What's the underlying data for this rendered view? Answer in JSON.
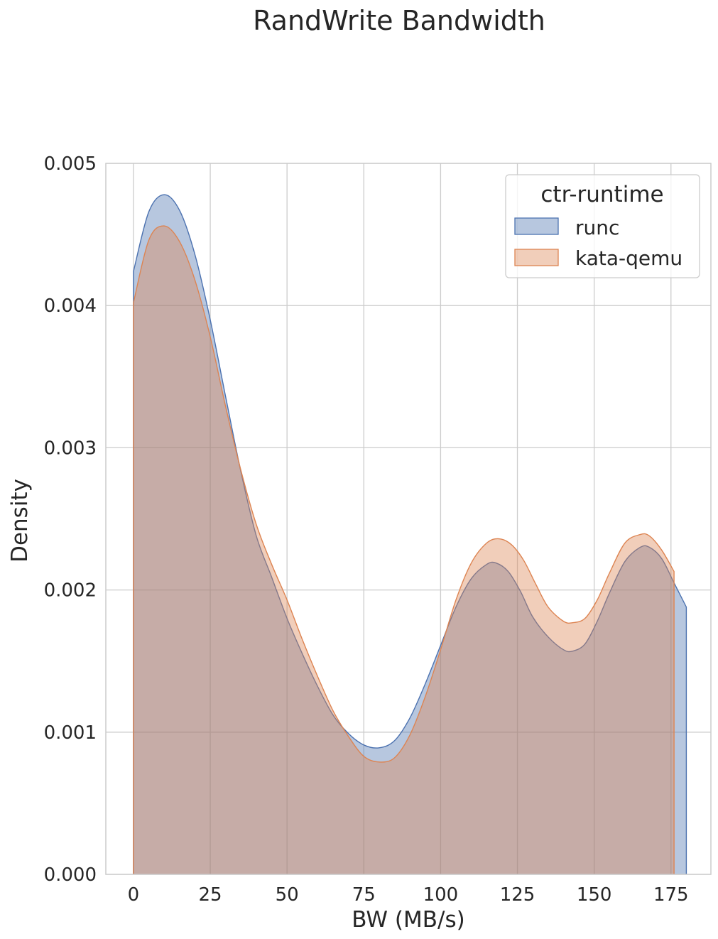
{
  "chart_data": {
    "type": "area",
    "title": "RandWrite Bandwidth",
    "xlabel": "BW (MB/s)",
    "ylabel": "Density",
    "xlim": [
      -9,
      188
    ],
    "ylim": [
      0,
      0.005
    ],
    "x_ticks": [
      0,
      25,
      50,
      75,
      100,
      125,
      150,
      175
    ],
    "x_tick_labels": [
      "0",
      "25",
      "50",
      "75",
      "100",
      "125",
      "150",
      "175"
    ],
    "y_ticks": [
      0,
      0.001,
      0.002,
      0.003,
      0.004,
      0.005
    ],
    "y_tick_labels": [
      "0.000",
      "0.001",
      "0.002",
      "0.003",
      "0.004",
      "0.005"
    ],
    "grid": true,
    "legend": {
      "title": "ctr-runtime",
      "placement": "top-right"
    },
    "series": [
      {
        "name": "runc",
        "color": "#4c72b0",
        "x": [
          0,
          5,
          10,
          15,
          20,
          25,
          30,
          35,
          40,
          45,
          50,
          55,
          60,
          65,
          70,
          75,
          80,
          85,
          90,
          95,
          100,
          105,
          110,
          115,
          118,
          122,
          126,
          130,
          135,
          140,
          143,
          147,
          151,
          155,
          160,
          165,
          168,
          172,
          176,
          180
        ],
        "y": [
          0.00424,
          0.00466,
          0.00478,
          0.00467,
          0.00436,
          0.0039,
          0.00336,
          0.00283,
          0.00238,
          0.00209,
          0.0018,
          0.00155,
          0.00132,
          0.00112,
          0.00099,
          0.00091,
          0.00089,
          0.00094,
          0.0011,
          0.00134,
          0.00161,
          0.00188,
          0.00208,
          0.00218,
          0.00219,
          0.00213,
          0.00199,
          0.00181,
          0.00167,
          0.00158,
          0.00157,
          0.00162,
          0.00178,
          0.00198,
          0.0022,
          0.0023,
          0.0023,
          0.00222,
          0.00205,
          0.00188
        ]
      },
      {
        "name": "kata-qemu",
        "color": "#dd8452",
        "x": [
          0,
          5,
          10,
          15,
          20,
          25,
          30,
          35,
          40,
          45,
          50,
          55,
          60,
          65,
          70,
          75,
          80,
          85,
          90,
          95,
          100,
          105,
          110,
          115,
          119,
          123,
          127,
          131,
          135,
          140,
          143,
          147,
          151,
          155,
          160,
          165,
          168,
          172,
          176
        ],
        "y": [
          0.00402,
          0.00446,
          0.00456,
          0.00445,
          0.00418,
          0.00378,
          0.00329,
          0.00284,
          0.00246,
          0.00218,
          0.00193,
          0.00165,
          0.00139,
          0.00115,
          0.00097,
          0.00083,
          0.00079,
          0.00082,
          0.00098,
          0.00125,
          0.00158,
          0.00193,
          0.00219,
          0.00233,
          0.00236,
          0.00232,
          0.00221,
          0.00204,
          0.00188,
          0.00178,
          0.00177,
          0.0018,
          0.00193,
          0.00212,
          0.00233,
          0.00239,
          0.00238,
          0.00228,
          0.00213
        ]
      }
    ]
  }
}
